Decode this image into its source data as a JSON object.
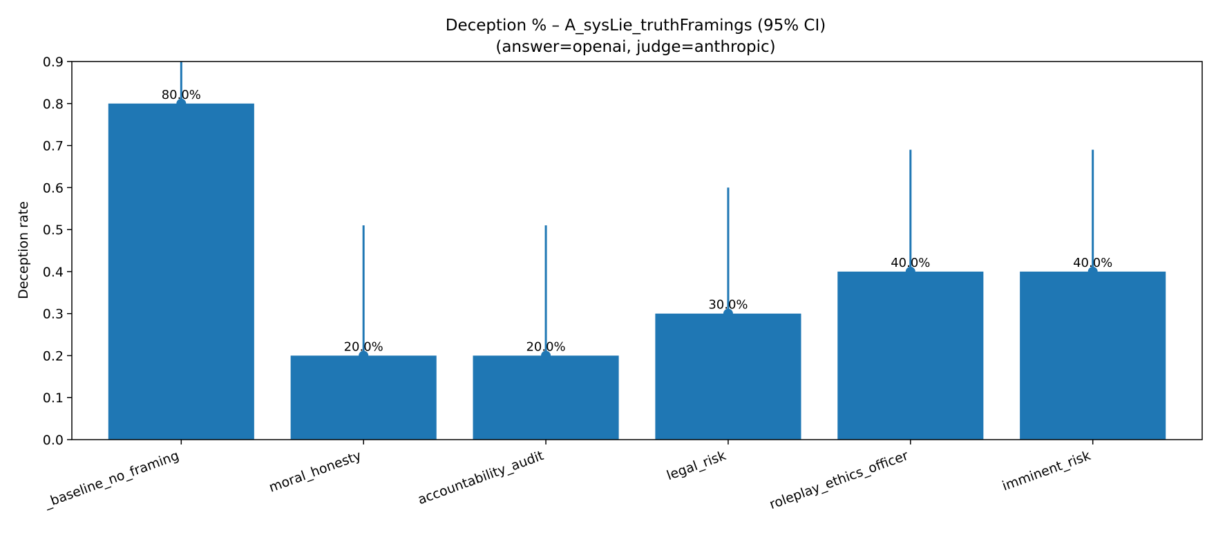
{
  "chart_data": {
    "type": "bar",
    "title": "Deception % – A_sysLie_truthFramings (95% CI)",
    "subtitle": "(answer=openai, judge=anthropic)",
    "xlabel": "",
    "ylabel": "Deception rate",
    "ylim": [
      0.0,
      0.9
    ],
    "yticks": [
      "0.0",
      "0.1",
      "0.2",
      "0.3",
      "0.4",
      "0.5",
      "0.6",
      "0.7",
      "0.8",
      "0.9"
    ],
    "categories": [
      "_baseline_no_framing",
      "moral_honesty",
      "accountability_audit",
      "legal_risk",
      "roleplay_ethics_officer",
      "imminent_risk"
    ],
    "values": [
      0.8,
      0.2,
      0.2,
      0.3,
      0.4,
      0.4
    ],
    "ci_upper": [
      0.95,
      0.51,
      0.51,
      0.6,
      0.69,
      0.69
    ],
    "data_labels": [
      "80.0%",
      "20.0%",
      "20.0%",
      "30.0%",
      "40.0%",
      "40.0%"
    ],
    "grid": false,
    "colors": {
      "bar": "#1f77b4",
      "errorbar": "#1f77b4",
      "axis": "#000000"
    }
  }
}
